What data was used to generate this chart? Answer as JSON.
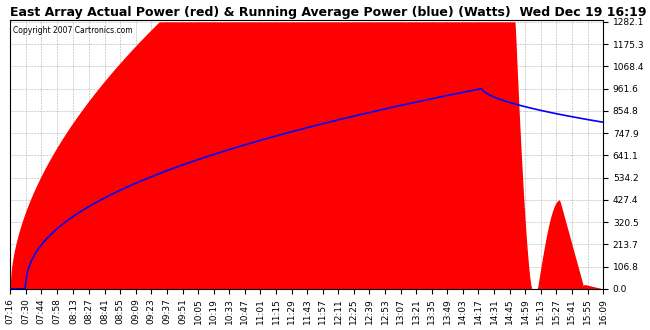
{
  "title": "East Array Actual Power (red) & Running Average Power (blue) (Watts)  Wed Dec 19 16:19",
  "copyright": "Copyright 2007 Cartronics.com",
  "ylabel_values": [
    0.0,
    106.8,
    213.7,
    320.5,
    427.4,
    534.2,
    641.1,
    747.9,
    854.8,
    961.6,
    1068.4,
    1175.3,
    1282.1
  ],
  "background_color": "#ffffff",
  "grid_color": "#b0b0b0",
  "fill_color": "#ff0000",
  "avg_line_color": "#0000ff",
  "title_fontsize": 9,
  "tick_fontsize": 6.5,
  "x_labels": [
    "07:16",
    "07:30",
    "07:44",
    "07:58",
    "08:13",
    "08:27",
    "08:41",
    "08:55",
    "09:09",
    "09:23",
    "09:37",
    "09:51",
    "10:05",
    "10:19",
    "10:33",
    "10:47",
    "11:01",
    "11:15",
    "11:29",
    "11:43",
    "11:57",
    "12:11",
    "12:25",
    "12:39",
    "12:53",
    "13:07",
    "13:21",
    "13:35",
    "13:49",
    "14:03",
    "14:17",
    "14:31",
    "14:45",
    "14:59",
    "15:13",
    "15:27",
    "15:41",
    "15:55",
    "16:09"
  ]
}
